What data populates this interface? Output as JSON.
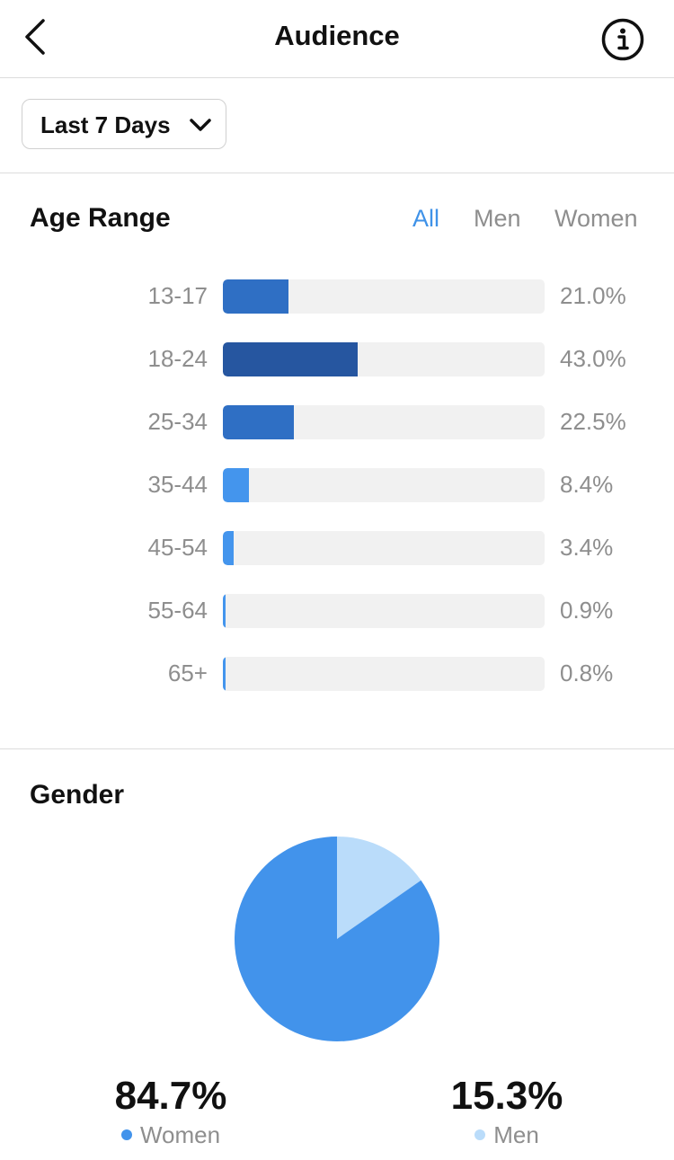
{
  "header": {
    "title": "Audience",
    "back_icon": "chevron-left-icon",
    "info_icon": "info-icon"
  },
  "filter": {
    "range_label": "Last 7 Days",
    "chevron_icon": "chevron-down-icon"
  },
  "age_range": {
    "title": "Age Range",
    "tabs": [
      {
        "label": "All",
        "active": true
      },
      {
        "label": "Men",
        "active": false
      },
      {
        "label": "Women",
        "active": false
      }
    ],
    "rows": [
      {
        "label": "13-17",
        "value_text": "21.0%"
      },
      {
        "label": "18-24",
        "value_text": "43.0%"
      },
      {
        "label": "25-34",
        "value_text": "22.5%"
      },
      {
        "label": "35-44",
        "value_text": "8.4%"
      },
      {
        "label": "45-54",
        "value_text": "3.4%"
      },
      {
        "label": "55-64",
        "value_text": "0.9%"
      },
      {
        "label": "65+",
        "value_text": "0.8%"
      }
    ]
  },
  "gender": {
    "title": "Gender",
    "women": {
      "pct_text": "84.7%",
      "label": "Women"
    },
    "men": {
      "pct_text": "15.3%",
      "label": "Men"
    }
  },
  "colors": {
    "accent": "#3f92e8",
    "tab_inactive": "#8e8e8e",
    "bar_track": "#f1f1f1",
    "bar_darkest": "#2656a0",
    "bar_dark": "#2f6fc4",
    "bar_light": "#4495ed",
    "women": "#4293eb",
    "men": "#badcfa"
  },
  "chart_data": [
    {
      "type": "bar",
      "orientation": "horizontal",
      "title": "Age Range",
      "categories": [
        "13-17",
        "18-24",
        "25-34",
        "35-44",
        "45-54",
        "55-64",
        "65+"
      ],
      "values": [
        21.0,
        43.0,
        22.5,
        8.4,
        3.4,
        0.9,
        0.8
      ],
      "unit": "%",
      "xlim": [
        0,
        100
      ],
      "grid": false,
      "legend": "none"
    },
    {
      "type": "pie",
      "title": "Gender",
      "categories": [
        "Women",
        "Men"
      ],
      "values": [
        84.7,
        15.3
      ],
      "unit": "%",
      "legend": "bottom"
    }
  ]
}
